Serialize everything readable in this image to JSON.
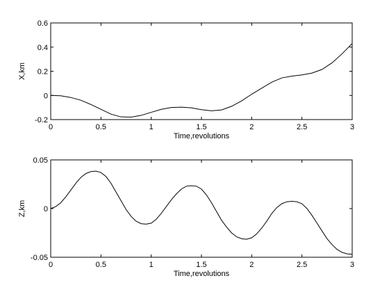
{
  "chart_data": [
    {
      "type": "line",
      "title": "",
      "xlabel": "Time,revolutions",
      "ylabel": "X,km",
      "xlim": [
        0,
        3
      ],
      "ylim": [
        -0.2,
        0.6
      ],
      "xticks": [
        "0",
        "0.5",
        "1",
        "1.5",
        "2",
        "2.5",
        "3"
      ],
      "yticks": [
        "-0.2",
        "0",
        "0.2",
        "0.4",
        "0.6"
      ],
      "grid": false,
      "line_color": "#000000",
      "series": [
        {
          "x": [
            0,
            0.1,
            0.2,
            0.3,
            0.4,
            0.5,
            0.6,
            0.7,
            0.8,
            0.9,
            1.0,
            1.1,
            1.2,
            1.3,
            1.4,
            1.5,
            1.6,
            1.7,
            1.8,
            1.9,
            2.0,
            2.1,
            2.2,
            2.3,
            2.4,
            2.5,
            2.6,
            2.7,
            2.8,
            2.9,
            3.0
          ],
          "y": [
            0.0,
            -0.003,
            -0.017,
            -0.04,
            -0.075,
            -0.115,
            -0.155,
            -0.178,
            -0.18,
            -0.165,
            -0.14,
            -0.115,
            -0.1,
            -0.097,
            -0.103,
            -0.118,
            -0.127,
            -0.12,
            -0.09,
            -0.045,
            0.01,
            0.06,
            0.11,
            0.145,
            0.16,
            0.17,
            0.185,
            0.215,
            0.27,
            0.345,
            0.43
          ]
        }
      ]
    },
    {
      "type": "line",
      "title": "",
      "xlabel": "Time,revolutions",
      "ylabel": "Z,km",
      "xlim": [
        0,
        3
      ],
      "ylim": [
        -0.05,
        0.05
      ],
      "xticks": [
        "0",
        "0.5",
        "1",
        "1.5",
        "2",
        "2.5",
        "3"
      ],
      "yticks": [
        "-0.05",
        "0",
        "0.05"
      ],
      "grid": false,
      "line_color": "#000000",
      "series": [
        {
          "x": [
            0,
            0.05,
            0.1,
            0.15,
            0.2,
            0.25,
            0.3,
            0.35,
            0.4,
            0.45,
            0.5,
            0.55,
            0.6,
            0.65,
            0.7,
            0.75,
            0.8,
            0.85,
            0.9,
            0.95,
            1.0,
            1.05,
            1.1,
            1.15,
            1.2,
            1.25,
            1.3,
            1.35,
            1.4,
            1.45,
            1.5,
            1.55,
            1.6,
            1.65,
            1.7,
            1.75,
            1.8,
            1.85,
            1.9,
            1.95,
            2.0,
            2.05,
            2.1,
            2.15,
            2.2,
            2.25,
            2.3,
            2.35,
            2.4,
            2.45,
            2.5,
            2.55,
            2.6,
            2.65,
            2.7,
            2.75,
            2.8,
            2.85,
            2.9,
            2.95,
            3.0
          ],
          "y": [
            0.0,
            0.002,
            0.006,
            0.012,
            0.019,
            0.026,
            0.032,
            0.036,
            0.038,
            0.0385,
            0.037,
            0.033,
            0.026,
            0.017,
            0.008,
            -0.001,
            -0.008,
            -0.013,
            -0.0155,
            -0.016,
            -0.015,
            -0.011,
            -0.005,
            0.002,
            0.009,
            0.015,
            0.02,
            0.023,
            0.0235,
            0.023,
            0.02,
            0.014,
            0.006,
            -0.003,
            -0.012,
            -0.019,
            -0.025,
            -0.029,
            -0.031,
            -0.0315,
            -0.03,
            -0.026,
            -0.02,
            -0.013,
            -0.005,
            0.001,
            0.005,
            0.007,
            0.0075,
            0.007,
            0.005,
            0.0,
            -0.007,
            -0.015,
            -0.023,
            -0.031,
            -0.037,
            -0.042,
            -0.045,
            -0.0465,
            -0.047
          ]
        }
      ]
    }
  ]
}
